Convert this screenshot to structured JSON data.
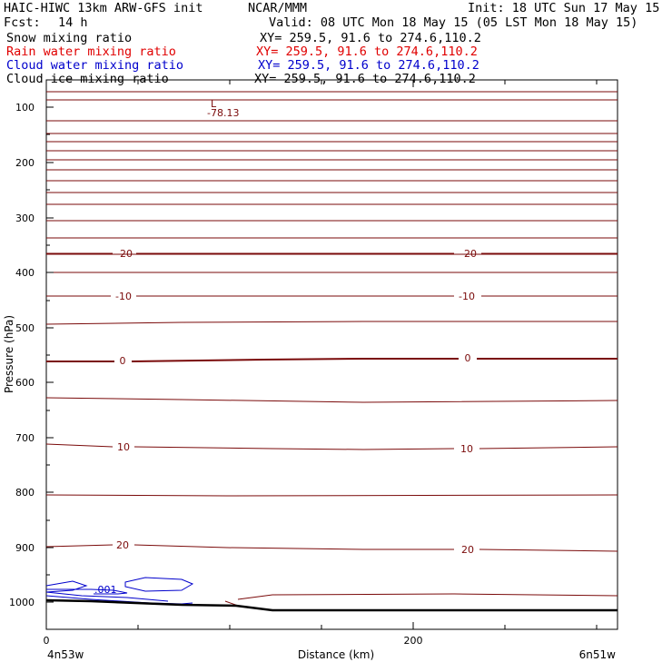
{
  "header": {
    "model": "HAIC-HIWC 13km ARW-GFS init",
    "org": "NCAR/MMM",
    "init": "Init: 18 UTC Sun 17 May 15",
    "fcst_label": "Fcst:",
    "fcst_value": "14 h",
    "valid": "Valid: 08 UTC Mon 18 May 15 (05 LST Mon 18 May 15)",
    "fields": [
      {
        "name": "Snow mixing ratio",
        "xy": "XY= 259.5, 91.6 to 274.6,110.2",
        "color": "#000000"
      },
      {
        "name": "Rain water mixing ratio",
        "xy": "XY= 259.5, 91.6 to 274.6,110.2",
        "color": "#e00000"
      },
      {
        "name": "Cloud water mixing ratio",
        "xy": "XY= 259.5, 91.6 to 274.6,110.2",
        "color": "#0000cc"
      },
      {
        "name": "Cloud ice mixing ratio",
        "xy": "XY= 259.5, 91.6 to 274.6,110.2",
        "color": "#000000"
      }
    ]
  },
  "axes": {
    "ylabel": "Pressure (hPa)",
    "xlabel": "Distance (km)",
    "y_ticks": [
      "100",
      "200",
      "300",
      "400",
      "500",
      "600",
      "700",
      "800",
      "900",
      "1000"
    ],
    "x_ticks": [
      "0",
      "200"
    ],
    "left_location": "4n53w",
    "right_location": "6n51w"
  },
  "annotations": {
    "low_marker": "L",
    "low_value": "-78.13",
    "temp_labels": [
      "-20",
      "-10",
      "0",
      "10",
      "20"
    ],
    "cloud_label": ".001"
  },
  "colors": {
    "contour": "#7a0a0a",
    "cloud": "#0000cc",
    "terrain": "#000000"
  }
}
